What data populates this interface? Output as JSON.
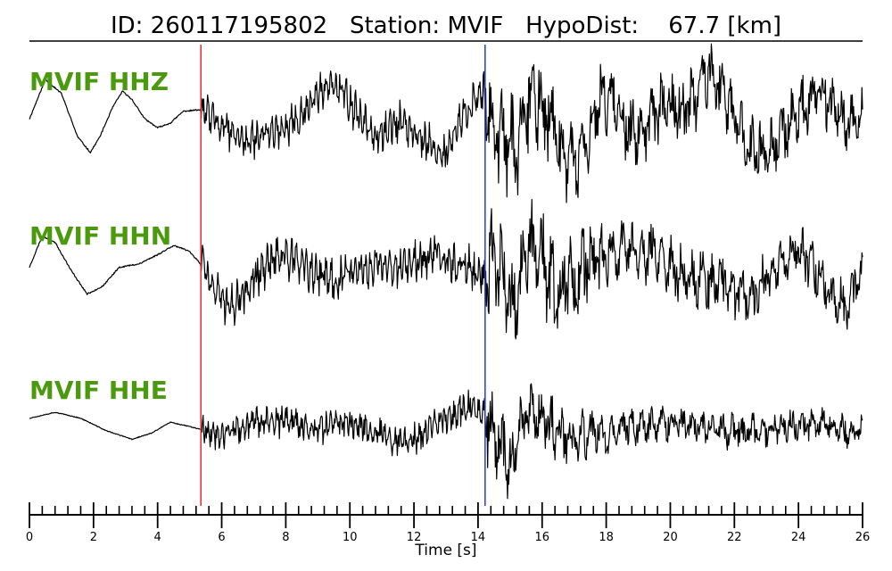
{
  "header": {
    "id_label": "ID:",
    "id_value": "260117195802",
    "station_label": "Station:",
    "station_value": "MVIF",
    "hypodist_label": "HypoDist:",
    "hypodist_value": "67.7",
    "hypodist_unit": "[km]"
  },
  "chart_data": {
    "type": "line",
    "title": "ID: 260117195802   Station: MVIF   HypoDist:    67.7 [km]",
    "xlabel": "Time [s]",
    "ylabel": "",
    "xlim": [
      0,
      26
    ],
    "xticks": [
      0,
      2,
      4,
      6,
      8,
      10,
      12,
      14,
      16,
      18,
      20,
      22,
      24,
      26
    ],
    "minor_tick_step": 0.4,
    "grid": false,
    "markers": [
      {
        "name": "P",
        "time": 5.35,
        "color": "#e8282c"
      },
      {
        "name": "S",
        "time": 14.22,
        "color": "#2b39d1"
      }
    ],
    "series": [
      {
        "name": "MVIF HHZ",
        "color": "#000000",
        "envelope": [
          {
            "t": 0,
            "value": 0.15
          },
          {
            "t": 5.35,
            "value": 0.15
          },
          {
            "t": 5.4,
            "value": 0.35
          },
          {
            "t": 14.2,
            "value": 0.45
          },
          {
            "t": 14.3,
            "value": 1.0
          },
          {
            "t": 17.5,
            "value": 0.75
          },
          {
            "t": 26,
            "value": 0.55
          }
        ],
        "values": [
          [
            0.0,
            -0.05
          ],
          [
            0.5,
            0.62
          ],
          [
            1.0,
            0.38
          ],
          [
            1.5,
            -0.35
          ],
          [
            1.9,
            -0.62
          ],
          [
            2.2,
            -0.35
          ],
          [
            2.6,
            0.15
          ],
          [
            2.9,
            0.42
          ],
          [
            3.2,
            0.28
          ],
          [
            3.6,
            -0.05
          ],
          [
            4.0,
            -0.2
          ],
          [
            4.4,
            -0.12
          ],
          [
            4.8,
            0.08
          ],
          [
            5.2,
            0.1
          ],
          [
            5.35,
            0.1
          ],
          [
            6.0,
            -0.18
          ],
          [
            6.8,
            -0.48
          ],
          [
            7.5,
            -0.25
          ],
          [
            8.3,
            -0.12
          ],
          [
            9.0,
            0.38
          ],
          [
            9.5,
            0.55
          ],
          [
            10.0,
            0.22
          ],
          [
            10.5,
            -0.2
          ],
          [
            11.0,
            -0.25
          ],
          [
            11.5,
            -0.1
          ],
          [
            12.3,
            -0.38
          ],
          [
            12.8,
            -0.65
          ],
          [
            13.2,
            -0.45
          ],
          [
            13.6,
            0.05
          ],
          [
            14.0,
            0.35
          ],
          [
            14.2,
            0.42
          ],
          [
            14.6,
            -0.3
          ],
          [
            15.2,
            -0.6
          ],
          [
            15.7,
            0.45
          ],
          [
            16.2,
            -0.1
          ],
          [
            16.6,
            -0.6
          ],
          [
            17.0,
            -0.85
          ],
          [
            17.4,
            -0.4
          ],
          [
            17.9,
            0.42
          ],
          [
            18.3,
            0.25
          ],
          [
            18.8,
            -0.4
          ],
          [
            19.3,
            -0.15
          ],
          [
            19.8,
            0.25
          ],
          [
            20.3,
            0.05
          ],
          [
            20.8,
            0.3
          ],
          [
            21.2,
            0.82
          ],
          [
            21.6,
            0.4
          ],
          [
            22.1,
            -0.15
          ],
          [
            22.6,
            -0.65
          ],
          [
            23.1,
            -0.55
          ],
          [
            23.6,
            -0.2
          ],
          [
            24.1,
            0.1
          ],
          [
            24.6,
            0.48
          ],
          [
            25.1,
            0.12
          ],
          [
            25.6,
            -0.15
          ],
          [
            26.0,
            0.05
          ]
        ]
      },
      {
        "name": "MVIF HHN",
        "color": "#000000",
        "envelope": [
          {
            "t": 0,
            "value": 0.15
          },
          {
            "t": 5.35,
            "value": 0.15
          },
          {
            "t": 5.4,
            "value": 0.4
          },
          {
            "t": 14.2,
            "value": 0.4
          },
          {
            "t": 14.3,
            "value": 1.0
          },
          {
            "t": 17.0,
            "value": 0.85
          },
          {
            "t": 18.0,
            "value": 0.6
          },
          {
            "t": 26,
            "value": 0.5
          }
        ],
        "values": [
          [
            0.0,
            0.05
          ],
          [
            0.4,
            0.55
          ],
          [
            0.8,
            0.45
          ],
          [
            1.3,
            0.0
          ],
          [
            1.8,
            -0.38
          ],
          [
            2.3,
            -0.25
          ],
          [
            2.8,
            0.05
          ],
          [
            3.4,
            0.1
          ],
          [
            4.0,
            0.25
          ],
          [
            4.5,
            0.4
          ],
          [
            5.0,
            0.3
          ],
          [
            5.35,
            0.1
          ],
          [
            5.8,
            -0.35
          ],
          [
            6.3,
            -0.58
          ],
          [
            6.8,
            -0.3
          ],
          [
            7.4,
            0.1
          ],
          [
            8.0,
            0.25
          ],
          [
            8.5,
            0.05
          ],
          [
            9.0,
            -0.1
          ],
          [
            9.6,
            -0.15
          ],
          [
            10.2,
            0.02
          ],
          [
            10.8,
            0.08
          ],
          [
            11.4,
            0.05
          ],
          [
            12.0,
            0.12
          ],
          [
            12.6,
            0.22
          ],
          [
            13.2,
            0.15
          ],
          [
            13.7,
            0.05
          ],
          [
            14.2,
            -0.12
          ],
          [
            14.6,
            0.3
          ],
          [
            15.1,
            -0.6
          ],
          [
            15.5,
            0.3
          ],
          [
            16.0,
            0.1
          ],
          [
            16.5,
            -0.35
          ],
          [
            17.0,
            -0.15
          ],
          [
            17.5,
            0.25
          ],
          [
            18.0,
            0.1
          ],
          [
            18.6,
            0.35
          ],
          [
            19.2,
            0.22
          ],
          [
            19.8,
            0.1
          ],
          [
            20.5,
            -0.05
          ],
          [
            21.2,
            -0.15
          ],
          [
            21.8,
            -0.25
          ],
          [
            22.4,
            -0.45
          ],
          [
            23.0,
            -0.1
          ],
          [
            23.6,
            0.15
          ],
          [
            24.0,
            0.38
          ],
          [
            24.5,
            0.0
          ],
          [
            25.0,
            -0.35
          ],
          [
            25.5,
            -0.55
          ],
          [
            26.0,
            0.05
          ]
        ]
      },
      {
        "name": "MVIF HHE",
        "color": "#000000",
        "envelope": [
          {
            "t": 0,
            "value": 0.1
          },
          {
            "t": 5.35,
            "value": 0.1
          },
          {
            "t": 5.4,
            "value": 0.35
          },
          {
            "t": 14.2,
            "value": 0.4
          },
          {
            "t": 14.3,
            "value": 1.0
          },
          {
            "t": 17.0,
            "value": 0.7
          },
          {
            "t": 18.0,
            "value": 0.45
          },
          {
            "t": 26,
            "value": 0.35
          }
        ],
        "values": [
          [
            0.0,
            0.2
          ],
          [
            0.8,
            0.32
          ],
          [
            1.6,
            0.2
          ],
          [
            2.4,
            -0.05
          ],
          [
            3.2,
            -0.22
          ],
          [
            3.8,
            -0.1
          ],
          [
            4.4,
            0.12
          ],
          [
            4.9,
            0.05
          ],
          [
            5.35,
            -0.02
          ],
          [
            6.0,
            -0.12
          ],
          [
            6.8,
            0.05
          ],
          [
            7.6,
            0.18
          ],
          [
            8.4,
            0.05
          ],
          [
            9.2,
            0.02
          ],
          [
            10.0,
            0.12
          ],
          [
            10.8,
            -0.05
          ],
          [
            11.4,
            -0.28
          ],
          [
            12.0,
            -0.25
          ],
          [
            12.6,
            0.05
          ],
          [
            13.2,
            0.28
          ],
          [
            13.8,
            0.45
          ],
          [
            14.2,
            0.3
          ],
          [
            14.6,
            -0.15
          ],
          [
            15.0,
            -0.75
          ],
          [
            15.5,
            0.3
          ],
          [
            16.0,
            0.15
          ],
          [
            16.5,
            -0.1
          ],
          [
            17.0,
            -0.3
          ],
          [
            17.5,
            -0.05
          ],
          [
            18.0,
            -0.15
          ],
          [
            18.7,
            0.05
          ],
          [
            19.5,
            0.12
          ],
          [
            20.3,
            0.1
          ],
          [
            21.0,
            0.02
          ],
          [
            21.8,
            -0.05
          ],
          [
            22.6,
            -0.05
          ],
          [
            23.4,
            0.0
          ],
          [
            24.2,
            0.08
          ],
          [
            25.0,
            0.05
          ],
          [
            25.6,
            -0.08
          ],
          [
            26.0,
            -0.05
          ]
        ]
      }
    ]
  }
}
